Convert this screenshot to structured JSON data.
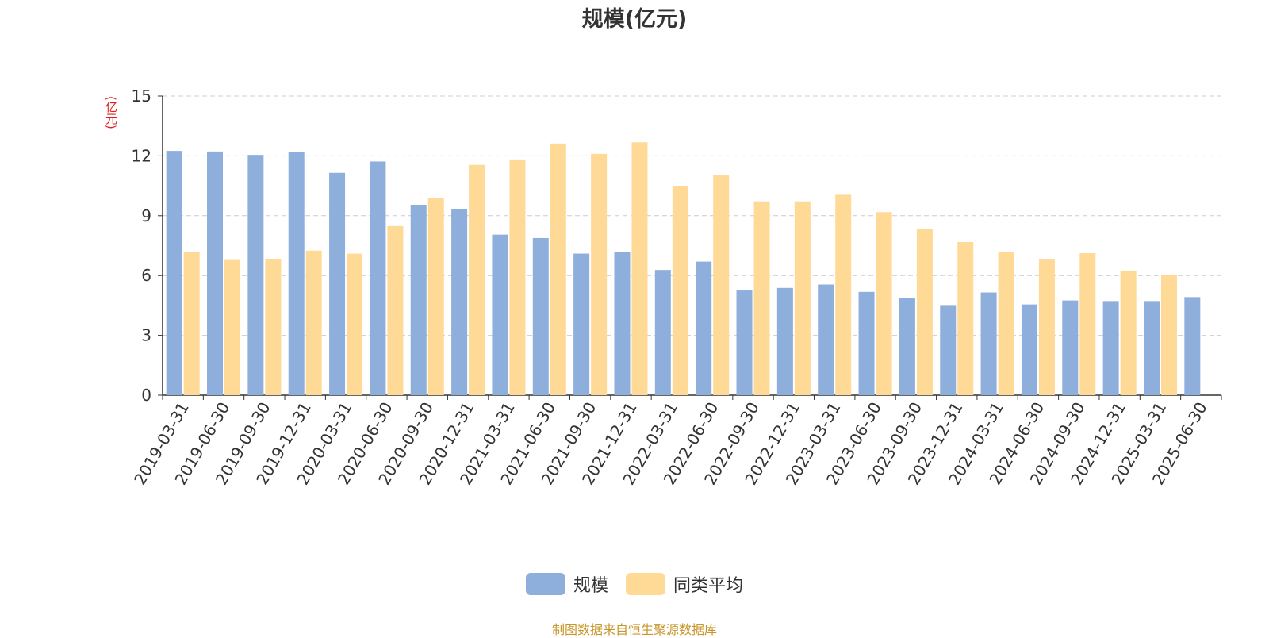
{
  "title": "规模(亿元)",
  "source_note": "制图数据来自恒生聚源数据库",
  "colors": {
    "scale": "#8eaedc",
    "peer_avg": "#ffd996",
    "ylabel": "#e02020",
    "source": "#c8962a"
  },
  "chart_data": {
    "type": "bar",
    "title": "规模(亿元)",
    "ylabel": "(亿元)",
    "xlabel": "",
    "ylim": [
      0,
      15
    ],
    "yticks": [
      0,
      3,
      6,
      9,
      12,
      15
    ],
    "grid": true,
    "legend_position": "bottom-center",
    "categories": [
      "2019-03-31",
      "2019-06-30",
      "2019-09-30",
      "2019-12-31",
      "2020-03-31",
      "2020-06-30",
      "2020-09-30",
      "2020-12-31",
      "2021-03-31",
      "2021-06-30",
      "2021-09-30",
      "2021-12-31",
      "2022-03-31",
      "2022-06-30",
      "2022-09-30",
      "2022-12-31",
      "2023-03-31",
      "2023-06-30",
      "2023-09-30",
      "2023-12-31",
      "2024-03-31",
      "2024-06-30",
      "2024-09-30",
      "2024-12-31",
      "2025-03-31",
      "2025-06-30"
    ],
    "series": [
      {
        "name": "规模",
        "color": "#8eaedc",
        "values": [
          12.25,
          12.22,
          12.05,
          12.18,
          11.15,
          11.72,
          9.55,
          9.35,
          8.05,
          7.88,
          7.1,
          7.18,
          6.28,
          6.7,
          5.25,
          5.38,
          5.55,
          5.18,
          4.88,
          4.52,
          5.15,
          4.55,
          4.75,
          4.72,
          4.72,
          4.92
        ]
      },
      {
        "name": "同类平均",
        "color": "#ffd996",
        "values": [
          7.18,
          6.78,
          6.82,
          7.25,
          7.1,
          8.48,
          9.88,
          11.55,
          11.82,
          12.62,
          12.1,
          12.68,
          10.5,
          11.02,
          9.72,
          9.72,
          10.05,
          9.18,
          8.35,
          7.68,
          7.18,
          6.8,
          7.12,
          6.25,
          6.05,
          null
        ]
      }
    ]
  }
}
